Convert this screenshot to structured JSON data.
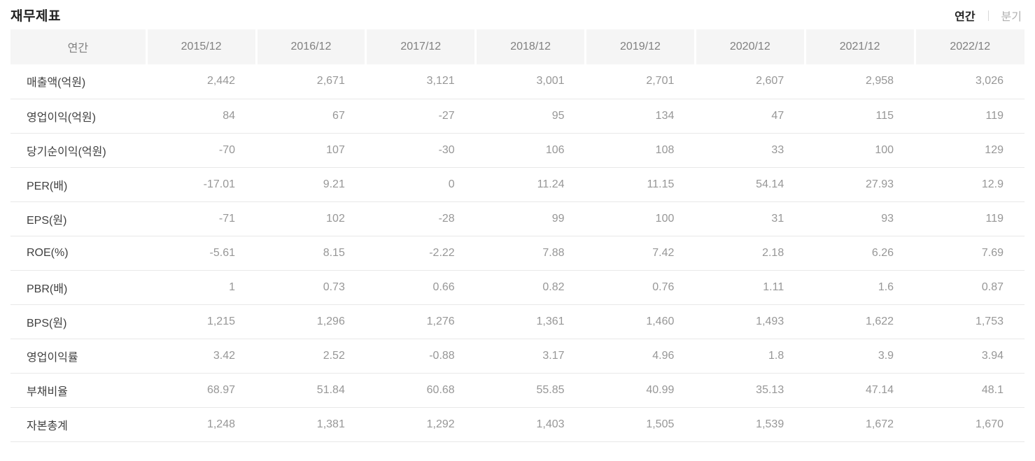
{
  "page": {
    "title": "재무제표"
  },
  "view_toggle": {
    "annual_label": "연간",
    "quarterly_label": "분기"
  },
  "colors": {
    "header_bg": "#f5f5f5",
    "row_border": "#e8e8e8",
    "value_text": "#979797",
    "label_text": "#404040",
    "selected_tab_text": "#222222",
    "unselected_tab_text": "#b0b0b0"
  },
  "table": {
    "header": [
      "연간",
      "2015/12",
      "2016/12",
      "2017/12",
      "2018/12",
      "2019/12",
      "2020/12",
      "2021/12",
      "2022/12"
    ],
    "rows": [
      {
        "label": "매출액(억원)",
        "values": [
          "2,442",
          "2,671",
          "3,121",
          "3,001",
          "2,701",
          "2,607",
          "2,958",
          "3,026"
        ]
      },
      {
        "label": "영업이익(억원)",
        "values": [
          "84",
          "67",
          "-27",
          "95",
          "134",
          "47",
          "115",
          "119"
        ]
      },
      {
        "label": "당기순이익(억원)",
        "values": [
          "-70",
          "107",
          "-30",
          "106",
          "108",
          "33",
          "100",
          "129"
        ]
      },
      {
        "label": "PER(배)",
        "values": [
          "-17.01",
          "9.21",
          "0",
          "11.24",
          "11.15",
          "54.14",
          "27.93",
          "12.9"
        ]
      },
      {
        "label": "EPS(원)",
        "values": [
          "-71",
          "102",
          "-28",
          "99",
          "100",
          "31",
          "93",
          "119"
        ]
      },
      {
        "label": "ROE(%)",
        "values": [
          "-5.61",
          "8.15",
          "-2.22",
          "7.88",
          "7.42",
          "2.18",
          "6.26",
          "7.69"
        ]
      },
      {
        "label": "PBR(배)",
        "values": [
          "1",
          "0.73",
          "0.66",
          "0.82",
          "0.76",
          "1.11",
          "1.6",
          "0.87"
        ]
      },
      {
        "label": "BPS(원)",
        "values": [
          "1,215",
          "1,296",
          "1,276",
          "1,361",
          "1,460",
          "1,493",
          "1,622",
          "1,753"
        ]
      },
      {
        "label": "영업이익률",
        "values": [
          "3.42",
          "2.52",
          "-0.88",
          "3.17",
          "4.96",
          "1.8",
          "3.9",
          "3.94"
        ]
      },
      {
        "label": "부채비율",
        "values": [
          "68.97",
          "51.84",
          "60.68",
          "55.85",
          "40.99",
          "35.13",
          "47.14",
          "48.1"
        ]
      },
      {
        "label": "자본총계",
        "values": [
          "1,248",
          "1,381",
          "1,292",
          "1,403",
          "1,505",
          "1,539",
          "1,672",
          "1,670"
        ]
      }
    ]
  }
}
